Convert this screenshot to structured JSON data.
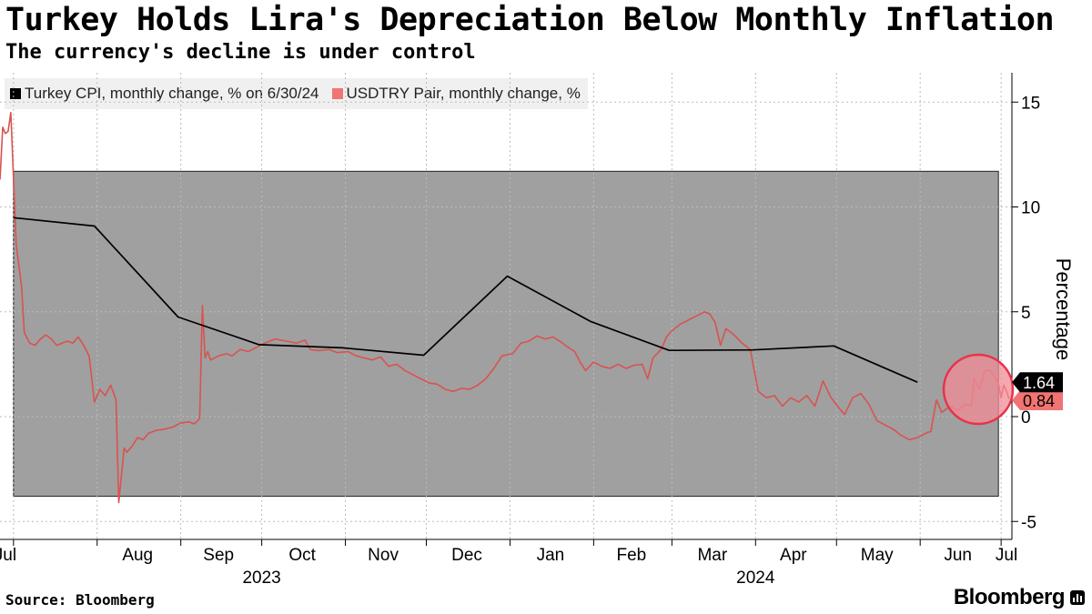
{
  "title": "Turkey Holds Lira's Depreciation Below Monthly Inflation",
  "subtitle": "The currency's decline is under control",
  "source": "Source: Bloomberg",
  "brand": "Bloomberg",
  "colors": {
    "cpi": "#000000",
    "usdtry": "#d9534f",
    "usdtry_swatch": "#f07472",
    "shade": "#a0a0a0",
    "highlight": "#f28b96"
  },
  "chart_data": {
    "type": "line",
    "ylabel": "Percentage",
    "ylim": [
      -5,
      16
    ],
    "yticks": [
      -5,
      0,
      5,
      10,
      15
    ],
    "x_range": [
      "2023-06-26",
      "2024-07-05"
    ],
    "shaded_period": {
      "start": "2023-07-01",
      "end": "2024-06-30"
    },
    "month_ticks": [
      "Jul",
      "Aug",
      "Sep",
      "Oct",
      "Nov",
      "Dec",
      "Jan",
      "Feb",
      "Mar",
      "Apr",
      "May",
      "Jun",
      "Jul"
    ],
    "year_labels": [
      "2023",
      "2024"
    ],
    "series": [
      {
        "name": "Turkey CPI, monthly change, % on 6/30/24",
        "last_value": "1.64",
        "points": [
          [
            "2023-07-01",
            9.49
          ],
          [
            "2023-07-31",
            9.09
          ],
          [
            "2023-08-31",
            4.75
          ],
          [
            "2023-09-30",
            3.43
          ],
          [
            "2023-10-31",
            3.28
          ],
          [
            "2023-11-30",
            2.93
          ],
          [
            "2023-12-31",
            6.7
          ],
          [
            "2024-01-31",
            4.53
          ],
          [
            "2024-02-29",
            3.16
          ],
          [
            "2024-03-31",
            3.18
          ],
          [
            "2024-04-30",
            3.37
          ],
          [
            "2024-05-31",
            1.64
          ]
        ]
      },
      {
        "name": "USDTRY Pair, monthly change, %",
        "last_value": "0.84",
        "points": [
          [
            "2023-06-26",
            11.3
          ],
          [
            "2023-06-27",
            13.8
          ],
          [
            "2023-06-28",
            13.5
          ],
          [
            "2023-06-29",
            13.6
          ],
          [
            "2023-06-30",
            14.5
          ],
          [
            "2023-07-02",
            8.2
          ],
          [
            "2023-07-04",
            6.2
          ],
          [
            "2023-07-05",
            4.0
          ],
          [
            "2023-07-07",
            3.5
          ],
          [
            "2023-07-09",
            3.4
          ],
          [
            "2023-07-11",
            3.7
          ],
          [
            "2023-07-13",
            3.9
          ],
          [
            "2023-07-15",
            3.7
          ],
          [
            "2023-07-17",
            3.4
          ],
          [
            "2023-07-19",
            3.5
          ],
          [
            "2023-07-21",
            3.6
          ],
          [
            "2023-07-23",
            3.5
          ],
          [
            "2023-07-25",
            3.8
          ],
          [
            "2023-07-27",
            3.4
          ],
          [
            "2023-07-29",
            2.9
          ],
          [
            "2023-07-31",
            0.7
          ],
          [
            "2023-08-02",
            1.3
          ],
          [
            "2023-08-04",
            1.0
          ],
          [
            "2023-08-06",
            1.5
          ],
          [
            "2023-08-08",
            0.8
          ],
          [
            "2023-08-09",
            -4.1
          ],
          [
            "2023-08-11",
            -1.5
          ],
          [
            "2023-08-12",
            -1.7
          ],
          [
            "2023-08-14",
            -1.4
          ],
          [
            "2023-08-16",
            -1.0
          ],
          [
            "2023-08-18",
            -1.1
          ],
          [
            "2023-08-20",
            -0.8
          ],
          [
            "2023-08-23",
            -0.65
          ],
          [
            "2023-08-26",
            -0.6
          ],
          [
            "2023-08-29",
            -0.5
          ],
          [
            "2023-09-01",
            -0.3
          ],
          [
            "2023-09-04",
            -0.25
          ],
          [
            "2023-09-06",
            -0.35
          ],
          [
            "2023-09-08",
            -0.1
          ],
          [
            "2023-09-09",
            5.3
          ],
          [
            "2023-09-10",
            2.8
          ],
          [
            "2023-09-11",
            3.1
          ],
          [
            "2023-09-12",
            2.7
          ],
          [
            "2023-09-15",
            2.9
          ],
          [
            "2023-09-18",
            3.0
          ],
          [
            "2023-09-20",
            2.9
          ],
          [
            "2023-09-23",
            3.2
          ],
          [
            "2023-09-26",
            3.1
          ],
          [
            "2023-09-29",
            3.3
          ],
          [
            "2023-10-02",
            3.5
          ],
          [
            "2023-10-06",
            3.7
          ],
          [
            "2023-10-10",
            3.6
          ],
          [
            "2023-10-14",
            3.5
          ],
          [
            "2023-10-17",
            3.65
          ],
          [
            "2023-10-19",
            3.2
          ],
          [
            "2023-10-22",
            3.15
          ],
          [
            "2023-10-26",
            3.2
          ],
          [
            "2023-10-29",
            3.05
          ],
          [
            "2023-11-02",
            3.1
          ],
          [
            "2023-11-05",
            2.9
          ],
          [
            "2023-11-08",
            2.8
          ],
          [
            "2023-11-11",
            2.7
          ],
          [
            "2023-11-14",
            2.85
          ],
          [
            "2023-11-17",
            2.4
          ],
          [
            "2023-11-20",
            2.5
          ],
          [
            "2023-11-23",
            2.2
          ],
          [
            "2023-11-26",
            2.0
          ],
          [
            "2023-11-29",
            1.8
          ],
          [
            "2023-12-02",
            1.6
          ],
          [
            "2023-12-05",
            1.55
          ],
          [
            "2023-12-08",
            1.3
          ],
          [
            "2023-12-11",
            1.2
          ],
          [
            "2023-12-14",
            1.35
          ],
          [
            "2023-12-17",
            1.3
          ],
          [
            "2023-12-20",
            1.5
          ],
          [
            "2023-12-23",
            1.8
          ],
          [
            "2023-12-26",
            2.3
          ],
          [
            "2023-12-29",
            2.9
          ],
          [
            "2024-01-02",
            3.0
          ],
          [
            "2024-01-05",
            3.5
          ],
          [
            "2024-01-08",
            3.6
          ],
          [
            "2024-01-11",
            3.85
          ],
          [
            "2024-01-14",
            3.7
          ],
          [
            "2024-01-17",
            3.8
          ],
          [
            "2024-01-20",
            3.55
          ],
          [
            "2024-01-22",
            3.35
          ],
          [
            "2024-01-25",
            3.1
          ],
          [
            "2024-01-27",
            2.6
          ],
          [
            "2024-01-29",
            2.2
          ],
          [
            "2024-02-01",
            2.6
          ],
          [
            "2024-02-04",
            2.4
          ],
          [
            "2024-02-07",
            2.3
          ],
          [
            "2024-02-10",
            2.5
          ],
          [
            "2024-02-13",
            2.3
          ],
          [
            "2024-02-16",
            2.45
          ],
          [
            "2024-02-19",
            2.5
          ],
          [
            "2024-02-21",
            1.8
          ],
          [
            "2024-02-23",
            2.8
          ],
          [
            "2024-02-26",
            3.2
          ],
          [
            "2024-02-28",
            3.8
          ],
          [
            "2024-03-01",
            4.1
          ],
          [
            "2024-03-04",
            4.4
          ],
          [
            "2024-03-07",
            4.6
          ],
          [
            "2024-03-10",
            4.8
          ],
          [
            "2024-03-13",
            5.0
          ],
          [
            "2024-03-15",
            4.9
          ],
          [
            "2024-03-17",
            4.5
          ],
          [
            "2024-03-19",
            3.4
          ],
          [
            "2024-03-21",
            4.2
          ],
          [
            "2024-03-24",
            3.9
          ],
          [
            "2024-03-27",
            3.5
          ],
          [
            "2024-03-30",
            3.2
          ],
          [
            "2024-04-02",
            1.2
          ],
          [
            "2024-04-05",
            0.9
          ],
          [
            "2024-04-08",
            1.0
          ],
          [
            "2024-04-11",
            0.5
          ],
          [
            "2024-04-14",
            0.9
          ],
          [
            "2024-04-17",
            0.7
          ],
          [
            "2024-04-20",
            1.0
          ],
          [
            "2024-04-23",
            0.5
          ],
          [
            "2024-04-26",
            1.7
          ],
          [
            "2024-04-29",
            0.9
          ],
          [
            "2024-05-02",
            0.4
          ],
          [
            "2024-05-04",
            0.1
          ],
          [
            "2024-05-07",
            0.9
          ],
          [
            "2024-05-10",
            1.1
          ],
          [
            "2024-05-13",
            0.6
          ],
          [
            "2024-05-16",
            -0.2
          ],
          [
            "2024-05-19",
            -0.4
          ],
          [
            "2024-05-22",
            -0.6
          ],
          [
            "2024-05-25",
            -0.9
          ],
          [
            "2024-05-28",
            -1.1
          ],
          [
            "2024-05-31",
            -1.0
          ],
          [
            "2024-06-03",
            -0.8
          ],
          [
            "2024-06-05",
            -0.7
          ],
          [
            "2024-06-07",
            0.8
          ],
          [
            "2024-06-09",
            0.2
          ],
          [
            "2024-06-12",
            0.5
          ],
          [
            "2024-06-15",
            0.3
          ],
          [
            "2024-06-18",
            0.6
          ],
          [
            "2024-06-20",
            0.5
          ],
          [
            "2024-06-21",
            1.8
          ],
          [
            "2024-06-23",
            1.3
          ],
          [
            "2024-06-25",
            2.2
          ],
          [
            "2024-06-27",
            2.2
          ],
          [
            "2024-06-28",
            2.0
          ],
          [
            "2024-06-30",
            1.6
          ],
          [
            "2024-07-01",
            0.9
          ],
          [
            "2024-07-02",
            1.5
          ],
          [
            "2024-07-03",
            1.2
          ],
          [
            "2024-07-04",
            0.84
          ]
        ]
      }
    ],
    "annotations": [
      {
        "type": "circle",
        "at": "latest values"
      }
    ]
  }
}
